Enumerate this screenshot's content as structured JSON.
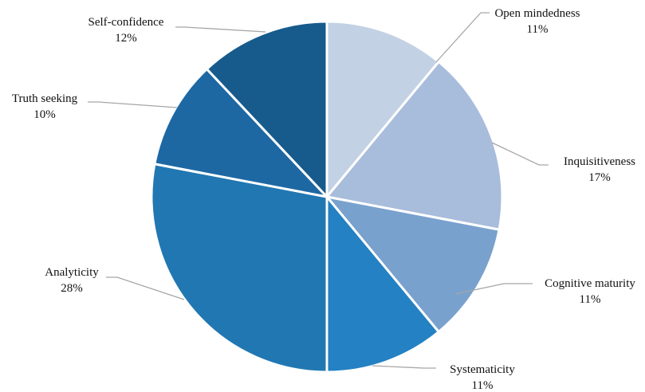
{
  "chart_data": {
    "type": "pie",
    "start_angle_deg": 0,
    "direction": "clockwise",
    "legend": "none",
    "slices": [
      {
        "label": "Open mindedness",
        "percent_label": "11%",
        "value": 11,
        "color": "#c3d1e4"
      },
      {
        "label": "Inquisitiveness",
        "percent_label": "17%",
        "value": 17,
        "color": "#a8bcdb"
      },
      {
        "label": "Cognitive maturity",
        "percent_label": "11%",
        "value": 11,
        "color": "#79a1ce"
      },
      {
        "label": "Systematicity",
        "percent_label": "11%",
        "value": 11,
        "color": "#2481c3"
      },
      {
        "label": "Analyticity",
        "percent_label": "28%",
        "value": 28,
        "color": "#2177b2"
      },
      {
        "label": "Truth seeking",
        "percent_label": "10%",
        "value": 10,
        "color": "#1d68a3"
      },
      {
        "label": "Self-confidence",
        "percent_label": "12%",
        "value": 12,
        "color": "#165b8c"
      }
    ],
    "colors": {
      "slice_border": "#ffffff",
      "leader_line": "#a6a6a6"
    }
  }
}
